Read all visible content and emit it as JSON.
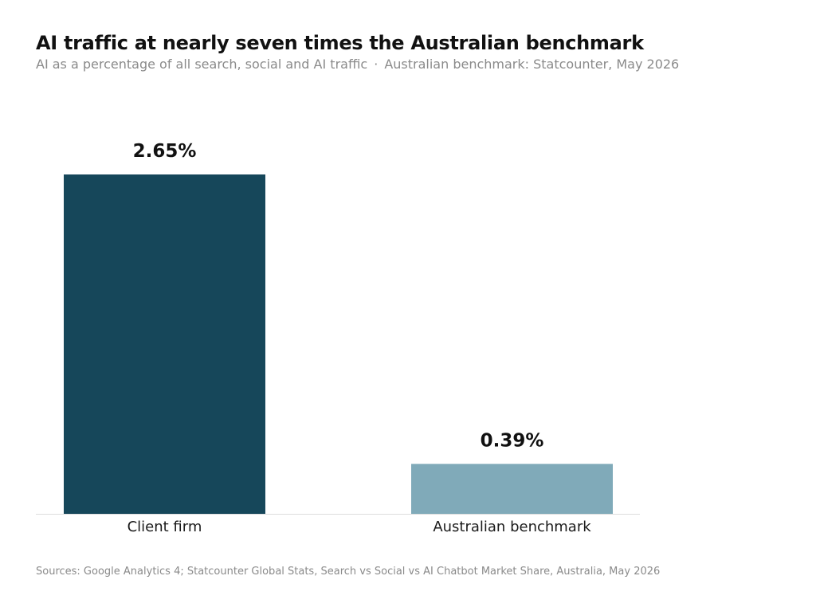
{
  "chart_data": {
    "type": "bar",
    "title": "AI traffic at nearly seven times the Australian benchmark",
    "subtitle_left": "AI as a percentage of all search, social and AI traffic",
    "subtitle_separator": "·",
    "subtitle_right": "Australian benchmark: Statcounter, May 2026",
    "categories": [
      "Client firm",
      "Australian benchmark"
    ],
    "values": [
      2.65,
      0.39
    ],
    "value_labels": [
      "2.65%",
      "0.39%"
    ],
    "colors": [
      "#16475a",
      "#80aab9"
    ],
    "ylim": [
      0,
      2.65
    ],
    "xlabel": "",
    "ylabel": "",
    "grid": false,
    "source": "Sources: Google Analytics 4; Statcounter Global Stats, Search vs Social vs AI Chatbot Market Share, Australia, May 2026"
  }
}
